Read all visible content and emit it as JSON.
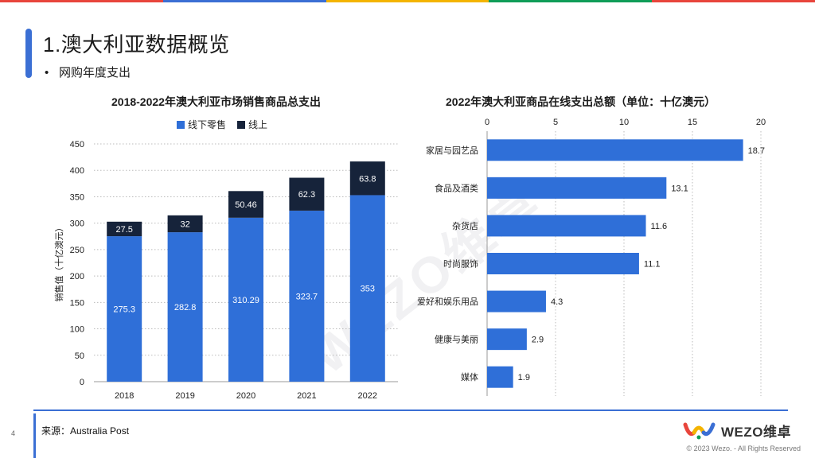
{
  "page": {
    "title": "1.澳大利亚数据概览",
    "bullet": "网购年度支出",
    "source": "来源：Australia Post",
    "page_number": "4",
    "copyright": "© 2023 Wezo. - All Rights Reserved",
    "logo_text": "WEZO维卓",
    "watermark": "WEZO维卓"
  },
  "colors": {
    "offline": "#2f6fd8",
    "online": "#16233a",
    "accent": "#3b6fd4",
    "topbar": [
      "#e8453c",
      "#3b6fd4",
      "#f4b400",
      "#0f9d58",
      "#e8453c"
    ]
  },
  "chart_data": [
    {
      "type": "bar",
      "stacked": true,
      "title": "2018-2022年澳大利亚市场销售商品总支出",
      "categories": [
        "2018",
        "2019",
        "2020",
        "2021",
        "2022"
      ],
      "series": [
        {
          "name": "线下零售",
          "values": [
            275.3,
            282.8,
            310.29,
            323.7,
            353
          ],
          "labels": [
            "275.3",
            "282.8",
            "310.29",
            "323.7",
            "353"
          ]
        },
        {
          "name": "线上",
          "values": [
            27.5,
            32,
            50.46,
            62.3,
            63.8
          ],
          "labels": [
            "27.5",
            "32",
            "50.46",
            "62.3",
            "63.8"
          ]
        }
      ],
      "ylabel": "销售值（十亿澳元）",
      "ylim": [
        0,
        450
      ],
      "yticks": [
        "0",
        "50",
        "100",
        "150",
        "200",
        "250",
        "300",
        "350",
        "400",
        "450"
      ],
      "legend": "top"
    },
    {
      "type": "bar",
      "orientation": "horizontal",
      "title": "2022年澳大利亚商品在线支出总额（单位：十亿澳元）",
      "categories": [
        "家居与园艺品",
        "食品及酒类",
        "杂货店",
        "时尚服饰",
        "爱好和娱乐用品",
        "健康与美丽",
        "媒体"
      ],
      "values": [
        18.7,
        13.1,
        11.6,
        11.1,
        4.3,
        2.9,
        1.9
      ],
      "labels": [
        "18.7",
        "13.1",
        "11.6",
        "11.1",
        "4.3",
        "2.9",
        "1.9"
      ],
      "xlim": [
        0,
        20
      ],
      "xticks": [
        "0",
        "5",
        "10",
        "15",
        "20"
      ]
    }
  ]
}
